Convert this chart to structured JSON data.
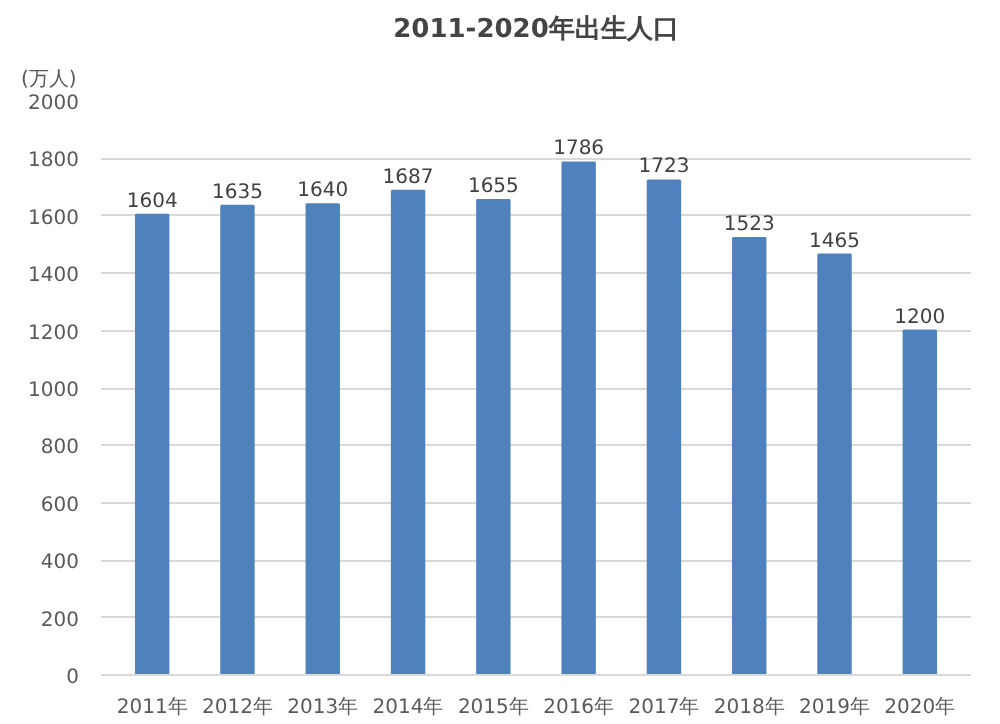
{
  "chart_data": {
    "type": "bar",
    "title": "2011-2020年出生人口",
    "ylabel": "(万人)",
    "categories": [
      "2011年",
      "2012年",
      "2013年",
      "2014年",
      "2015年",
      "2016年",
      "2017年",
      "2018年",
      "2019年",
      "2020年"
    ],
    "values": [
      1604,
      1635,
      1640,
      1687,
      1655,
      1786,
      1723,
      1523,
      1465,
      1200
    ],
    "color": "#4f81bd",
    "ylim": [
      0,
      2000
    ],
    "yticks": [
      0,
      200,
      400,
      600,
      800,
      1000,
      1200,
      1400,
      1600,
      1800,
      2000
    ],
    "grid": "y",
    "data_labels": true
  }
}
